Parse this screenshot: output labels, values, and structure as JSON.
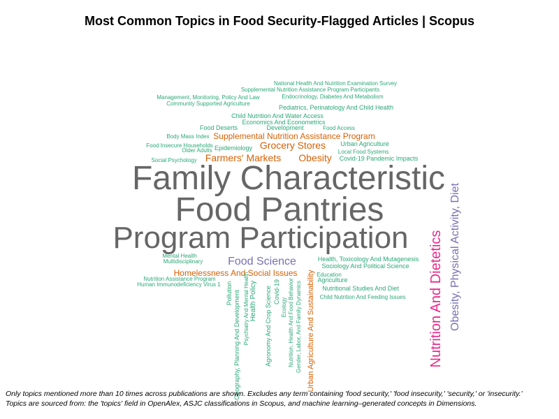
{
  "chart_data": {
    "type": "wordcloud",
    "title": "Most Common Topics in Food Security-Flagged Articles | Scopus",
    "colors": {
      "gray": "#666666",
      "green": "#2aa876",
      "orange": "#d95f02",
      "purple": "#7570b3",
      "pink": "#e7298a"
    },
    "words": [
      {
        "text": "Family Characteristic",
        "color": "gray"
      },
      {
        "text": "Food Pantries",
        "color": "gray"
      },
      {
        "text": "Program Participation",
        "color": "gray"
      },
      {
        "text": "Nutrition And Dietetics",
        "color": "pink"
      },
      {
        "text": "Obesity, Physical Activity, Diet",
        "color": "purple"
      },
      {
        "text": "Food Science",
        "color": "purple"
      },
      {
        "text": "Grocery Stores",
        "color": "orange"
      },
      {
        "text": "Farmers' Markets",
        "color": "orange"
      },
      {
        "text": "Obesity",
        "color": "orange"
      },
      {
        "text": "Homelessness And Social Issues",
        "color": "orange"
      },
      {
        "text": "Supplemental Nutrition Assistance Program",
        "color": "orange"
      },
      {
        "text": "Urban Agriculture And Sustainability",
        "color": "orange"
      },
      {
        "text": "National Health And Nutrition Examination Survey",
        "color": "green"
      },
      {
        "text": "Supplemental Nutrition Assistance Program Participants",
        "color": "green"
      },
      {
        "text": "Endocrinology, Diabetes And Metabolism",
        "color": "green"
      },
      {
        "text": "Management, Monitoring, Policy And Law",
        "color": "green"
      },
      {
        "text": "Community Supported Agriculture",
        "color": "green"
      },
      {
        "text": "Pediatrics, Perinatology And Child Health",
        "color": "green"
      },
      {
        "text": "Child Nutrition And Water Access",
        "color": "green"
      },
      {
        "text": "Economics And Econometrics",
        "color": "green"
      },
      {
        "text": "Food Deserts",
        "color": "green"
      },
      {
        "text": "Development",
        "color": "green"
      },
      {
        "text": "Food Access",
        "color": "green"
      },
      {
        "text": "Body Mass Index",
        "color": "green"
      },
      {
        "text": "Food Insecure Households",
        "color": "green"
      },
      {
        "text": "Older Adults",
        "color": "green"
      },
      {
        "text": "Epidemiology",
        "color": "green"
      },
      {
        "text": "Urban Agriculture",
        "color": "green"
      },
      {
        "text": "Local Food Systems",
        "color": "green"
      },
      {
        "text": "Social Psychology",
        "color": "green"
      },
      {
        "text": "Covid-19 Pandemic Impacts",
        "color": "green"
      },
      {
        "text": "Mental Health",
        "color": "green"
      },
      {
        "text": "Multidisciplinary",
        "color": "green"
      },
      {
        "text": "Health, Toxicology And Mutagenesis",
        "color": "green"
      },
      {
        "text": "Sociology And Political Science",
        "color": "green"
      },
      {
        "text": "Education",
        "color": "green"
      },
      {
        "text": "Agriculture",
        "color": "green"
      },
      {
        "text": "Nutrition Assistance Program",
        "color": "green"
      },
      {
        "text": "Human Immunodeficiency Virus 1",
        "color": "green"
      },
      {
        "text": "Nutritional Studies And Diet",
        "color": "green"
      },
      {
        "text": "Child Nutrition And Feeding Issues",
        "color": "green"
      },
      {
        "text": "Pollution",
        "color": "green"
      },
      {
        "text": "Geography, Planning And Development",
        "color": "green"
      },
      {
        "text": "Psychiatry And Mental Health",
        "color": "green"
      },
      {
        "text": "Health Policy",
        "color": "green"
      },
      {
        "text": "Agronomy And Crop Science",
        "color": "green"
      },
      {
        "text": "Covid-19",
        "color": "green"
      },
      {
        "text": "Ecology",
        "color": "green"
      },
      {
        "text": "Nutrition, Health And Food Behavior",
        "color": "green"
      },
      {
        "text": "Gender, Labor, And Family Dynamics",
        "color": "green"
      }
    ]
  },
  "caption": {
    "line1": "Only topics mentioned more than 10 times across publications are shown. Excludes any term containing 'food security,' 'food insecurity,' 'security,' or 'insecurity.'",
    "line2": "Topics are sourced from: the 'topics' field in OpenAlex, ASJC classifications in Scopus, and machine learning–generated concepts in Dimensions."
  }
}
